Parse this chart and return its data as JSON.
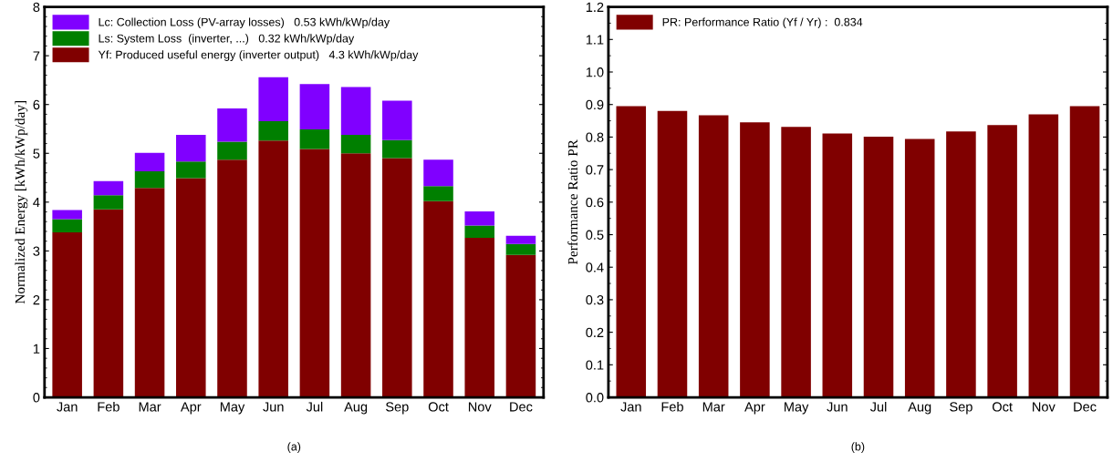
{
  "chart_data": [
    {
      "type": "bar",
      "stacked": true,
      "ylabel": "Normalized Energy [kWh/kWp/day]",
      "annotations": [
        "(a)"
      ],
      "legend": "top left",
      "grid": false,
      "categories": [
        "Jan",
        "Feb",
        "Mar",
        "Apr",
        "May",
        "Jun",
        "Jul",
        "Aug",
        "Sep",
        "Oct",
        "Nov",
        "Dec"
      ],
      "series": [
        {
          "name": "Yf: Produced useful energy (inverter output)   4.3 kWh/kWp/day",
          "color": "#800000",
          "values": [
            3.38,
            3.85,
            4.29,
            4.49,
            4.87,
            5.26,
            5.09,
            5.0,
            4.9,
            4.02,
            3.27,
            2.92
          ]
        },
        {
          "name": "Ls: System Loss  (inverter, ...)   0.32 kWh/kWp/day",
          "color": "#007f00",
          "values": [
            0.27,
            0.29,
            0.34,
            0.34,
            0.37,
            0.4,
            0.4,
            0.38,
            0.37,
            0.31,
            0.25,
            0.22
          ]
        },
        {
          "name": "Lc: Collection Loss (PV-array losses)   0.53 kWh/kWp/day",
          "color": "#8000ff",
          "values": [
            0.19,
            0.29,
            0.38,
            0.55,
            0.68,
            0.9,
            0.93,
            0.98,
            0.81,
            0.54,
            0.29,
            0.17
          ]
        }
      ],
      "ylim": [
        0,
        8
      ],
      "yticks": [
        0,
        1,
        2,
        3,
        4,
        5,
        6,
        7,
        8
      ]
    },
    {
      "type": "bar",
      "ylabel": "Performance Ratio PR",
      "annotations": [
        "(b)"
      ],
      "legend": "top left",
      "grid": false,
      "categories": [
        "Jan",
        "Feb",
        "Mar",
        "Apr",
        "May",
        "Jun",
        "Jul",
        "Aug",
        "Sep",
        "Oct",
        "Nov",
        "Dec"
      ],
      "series": [
        {
          "name": "PR: Performance Ratio (Yf / Yr) :  0.834",
          "color": "#800000",
          "values": [
            0.895,
            0.88,
            0.867,
            0.845,
            0.831,
            0.811,
            0.801,
            0.794,
            0.817,
            0.837,
            0.87,
            0.895
          ]
        }
      ],
      "ylim": [
        0.0,
        1.2
      ],
      "yticks": [
        {
          "value": 0,
          "label": "0.0"
        },
        0.1,
        0.2,
        0.3,
        0.4,
        0.5,
        0.6,
        0.7,
        0.8,
        0.9,
        {
          "value": 1,
          "label": "1.0"
        },
        1.1,
        1.2
      ]
    }
  ]
}
